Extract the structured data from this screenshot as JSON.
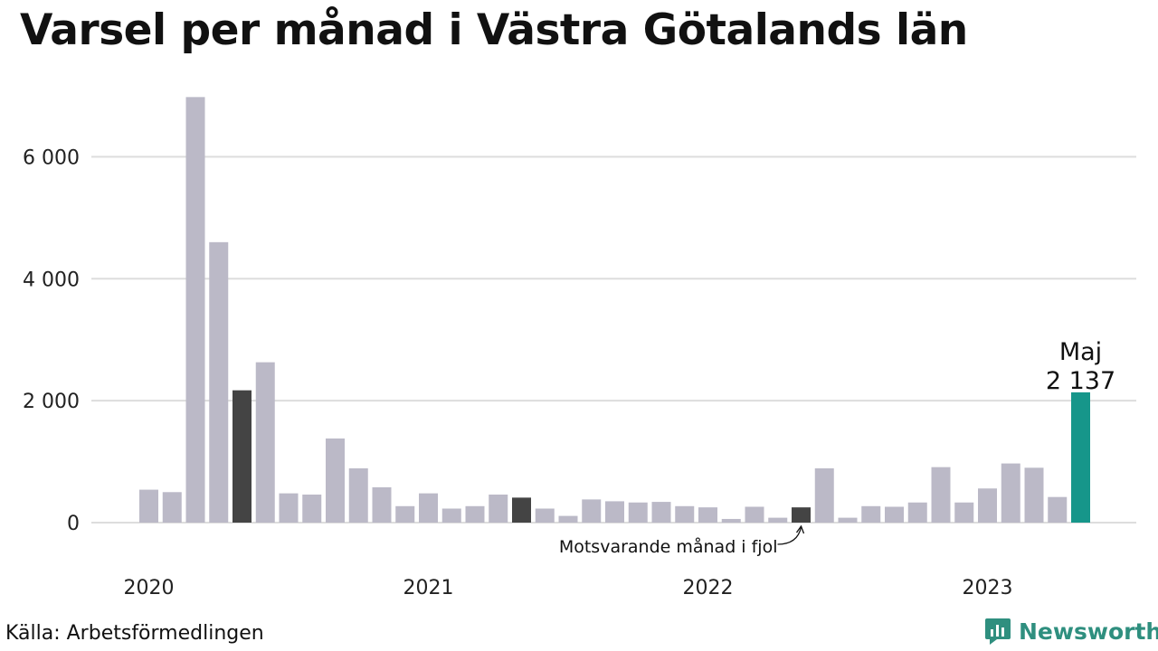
{
  "title": "Varsel per månad i Västra Götalands län",
  "source": "Källa: Arbetsförmedlingen",
  "brand": {
    "name": "Newsworthy",
    "icon": "newsworthy-logo-icon",
    "color": "#2f8f7f"
  },
  "colors": {
    "default": "#bbb9c7",
    "same_month": "#444444",
    "highlight": "#16968a",
    "grid": "#dddddd"
  },
  "chart_data": {
    "type": "bar",
    "title": "Varsel per månad i Västra Götalands län",
    "ylim": [
      0,
      7000
    ],
    "yticks": [
      0,
      2000,
      4000,
      6000
    ],
    "ytick_labels": [
      "0",
      "2 000",
      "4 000",
      "6 000"
    ],
    "grid": true,
    "x_labels": [
      "2020",
      "2021",
      "2022",
      "2023"
    ],
    "x_label_indices": [
      0,
      12,
      24,
      36
    ],
    "values": [
      540,
      500,
      6980,
      4600,
      2170,
      2630,
      480,
      460,
      1380,
      890,
      580,
      270,
      480,
      230,
      270,
      460,
      410,
      230,
      110,
      380,
      350,
      330,
      340,
      270,
      250,
      60,
      260,
      80,
      250,
      890,
      80,
      270,
      260,
      330,
      910,
      330,
      560,
      970,
      900,
      420,
      2137
    ],
    "same_month_indices": [
      4,
      16,
      28
    ],
    "highlight_index": 40,
    "highlight_label": {
      "month": "Maj",
      "value": "2 137"
    },
    "annotation": {
      "text": "Motsvarande månad i fjol",
      "index": 28
    }
  }
}
